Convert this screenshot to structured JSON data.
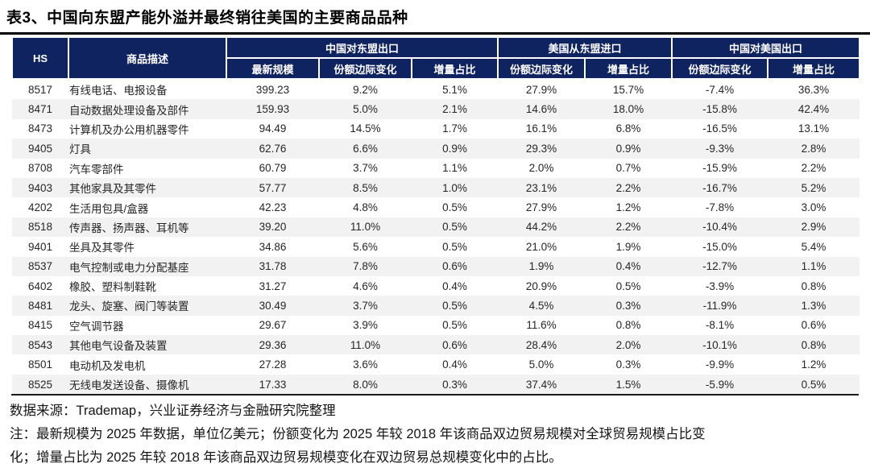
{
  "title": "表3、中国向东盟产能外溢并最终销往美国的主要商品品种",
  "table": {
    "header": {
      "hs": "HS",
      "desc": "商品描述",
      "groups": [
        {
          "label": "中国对东盟出口",
          "cols": [
            "最新规模",
            "份额边际变化",
            "增量占比"
          ]
        },
        {
          "label": "美国从东盟进口",
          "cols": [
            "份额边际变化",
            "增量占比"
          ]
        },
        {
          "label": "中国对美国出口",
          "cols": [
            "份额边际变化",
            "增量占比"
          ]
        }
      ]
    },
    "rows": [
      [
        "8517",
        "有线电话、电报设备",
        "399.23",
        "9.2%",
        "5.1%",
        "27.9%",
        "15.7%",
        "-7.4%",
        "36.3%"
      ],
      [
        "8471",
        "自动数据处理设备及部件",
        "159.93",
        "5.0%",
        "2.1%",
        "14.6%",
        "18.0%",
        "-15.8%",
        "42.4%"
      ],
      [
        "8473",
        "计算机及办公用机器零件",
        "94.49",
        "14.5%",
        "1.7%",
        "16.1%",
        "6.8%",
        "-16.5%",
        "13.1%"
      ],
      [
        "9405",
        "灯具",
        "62.76",
        "6.6%",
        "0.9%",
        "29.3%",
        "0.9%",
        "-9.3%",
        "2.8%"
      ],
      [
        "8708",
        "汽车零部件",
        "60.79",
        "3.7%",
        "1.1%",
        "2.0%",
        "0.7%",
        "-15.9%",
        "2.2%"
      ],
      [
        "9403",
        "其他家具及其零件",
        "57.77",
        "8.5%",
        "1.0%",
        "23.1%",
        "2.2%",
        "-16.7%",
        "5.2%"
      ],
      [
        "4202",
        "生活用包具/盒器",
        "42.23",
        "4.8%",
        "0.5%",
        "27.9%",
        "1.2%",
        "-7.8%",
        "3.0%"
      ],
      [
        "8518",
        "传声器、扬声器、耳机等",
        "39.20",
        "11.0%",
        "0.5%",
        "44.2%",
        "2.2%",
        "-10.4%",
        "2.9%"
      ],
      [
        "9401",
        "坐具及其零件",
        "34.86",
        "5.6%",
        "0.5%",
        "21.0%",
        "1.9%",
        "-15.0%",
        "5.4%"
      ],
      [
        "8537",
        "电气控制或电力分配基座",
        "31.78",
        "7.8%",
        "0.6%",
        "1.9%",
        "0.4%",
        "-12.7%",
        "1.1%"
      ],
      [
        "6402",
        "橡胶、塑料制鞋靴",
        "31.27",
        "4.6%",
        "0.4%",
        "20.9%",
        "0.5%",
        "-3.9%",
        "0.8%"
      ],
      [
        "8481",
        "龙头、旋塞、阀门等装置",
        "30.49",
        "3.7%",
        "0.5%",
        "4.5%",
        "0.3%",
        "-11.9%",
        "1.3%"
      ],
      [
        "8415",
        "空气调节器",
        "29.67",
        "3.9%",
        "0.5%",
        "11.6%",
        "0.8%",
        "-8.1%",
        "0.6%"
      ],
      [
        "8543",
        "其他电气设备及装置",
        "29.36",
        "11.0%",
        "0.6%",
        "28.4%",
        "2.0%",
        "-10.1%",
        "0.8%"
      ],
      [
        "8501",
        "电动机及发电机",
        "27.28",
        "3.6%",
        "0.4%",
        "5.0%",
        "0.3%",
        "-9.9%",
        "1.2%"
      ],
      [
        "8525",
        "无线电发送设备、摄像机",
        "17.33",
        "8.0%",
        "0.3%",
        "37.4%",
        "1.5%",
        "-5.9%",
        "0.5%"
      ]
    ]
  },
  "footer": {
    "source": "数据来源：Trademap，兴业证券经济与金融研究院整理",
    "note_line1": "注：最新规模为 2025 年数据，单位亿美元；份额变化为 2025 年较 2018 年该商品双边贸易规模对全球贸易规模占比变",
    "note_line2": "化；增量占比为 2025 年较 2018 年该商品双边贸易规模变化在双边贸易总规模变化中的占比。"
  },
  "colors": {
    "header_bg": "#102361",
    "alt_row_bg": "#f2f2f2",
    "title_rule": "#000000",
    "table_bottom_rule": "#1b1b1b"
  }
}
